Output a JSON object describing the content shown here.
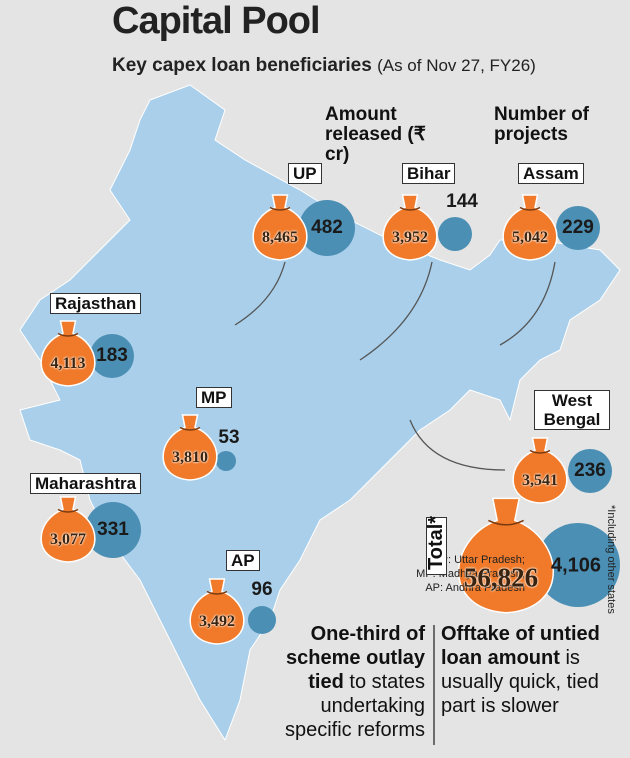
{
  "header": {
    "title": "Capital Pool",
    "subtitle": "Key capex loan beneficiaries",
    "note": "(As of Nov 27, FY26)"
  },
  "legend": {
    "amount": "Amount released (₹ cr)",
    "projects": "Number of projects"
  },
  "states": [
    {
      "name": "UP",
      "amount": "8,465",
      "projects": "482"
    },
    {
      "name": "Bihar",
      "amount": "3,952",
      "projects": "144"
    },
    {
      "name": "Assam",
      "amount": "5,042",
      "projects": "229"
    },
    {
      "name": "Rajasthan",
      "amount": "4,113",
      "projects": "183"
    },
    {
      "name": "MP",
      "amount": "3,810",
      "projects": "53"
    },
    {
      "name": "West Bengal",
      "amount": "3,541",
      "projects": "236"
    },
    {
      "name": "Maharashtra",
      "amount": "3,077",
      "projects": "331"
    },
    {
      "name": "AP",
      "amount": "3,492",
      "projects": "96"
    }
  ],
  "total": {
    "label": "Total*",
    "amount": "56,826",
    "projects": "4,106"
  },
  "footnote": "*Including other states",
  "abbreviations": [
    "UP: Uttar Pradesh;",
    "MP: Madhya Pradesh;",
    "AP: Andhra Pradesh"
  ],
  "notes": [
    {
      "bold": "One-third of scheme outlay tied",
      "rest": "to states undertaking specific reforms"
    },
    {
      "bold": "Offtake of untied loan amount",
      "rest": "is usually quick, tied part is slower"
    }
  ]
}
